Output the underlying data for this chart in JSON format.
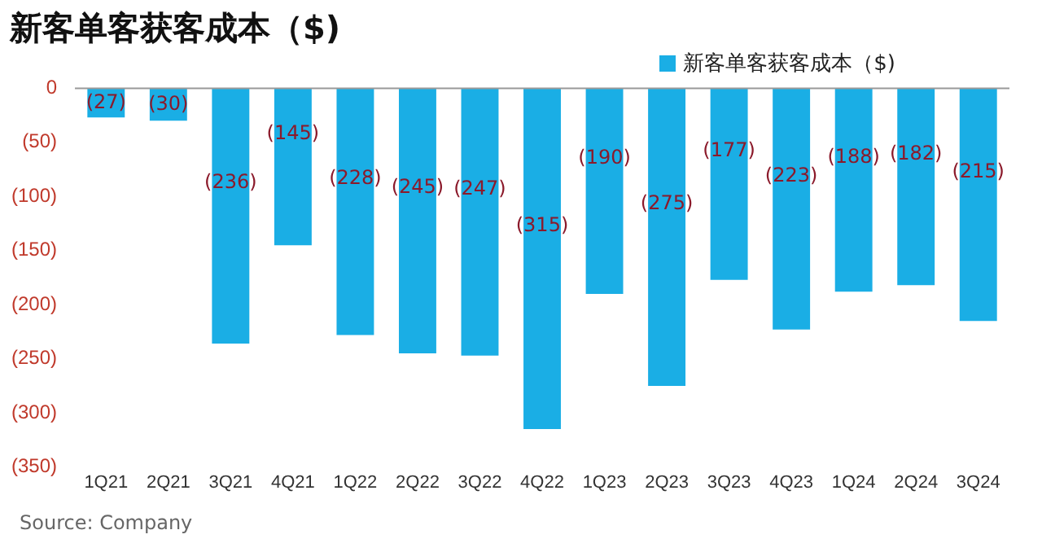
{
  "chart_data": {
    "type": "bar",
    "title": "新客单客获客成本（$)",
    "categories": [
      "1Q21",
      "2Q21",
      "3Q21",
      "4Q21",
      "1Q22",
      "2Q22",
      "3Q22",
      "4Q22",
      "1Q23",
      "2Q23",
      "3Q23",
      "4Q23",
      "1Q24",
      "2Q24",
      "3Q24"
    ],
    "series": [
      {
        "name": "新客单客获客成本（$)",
        "color": "#1aaee5",
        "values": [
          -27,
          -30,
          -236,
          -145,
          -228,
          -245,
          -247,
          -315,
          -190,
          -275,
          -177,
          -223,
          -188,
          -182,
          -215
        ],
        "value_labels": [
          "(27)",
          "(30)",
          "(236)",
          "(145)",
          "(228)",
          "(245)",
          "(247)",
          "(315)",
          "(190)",
          "(275)",
          "(177)",
          "(223)",
          "(188)",
          "(182)",
          "(215)"
        ]
      }
    ],
    "ylim": [
      -350,
      0
    ],
    "yticks": [
      0,
      {
        "value": -50,
        "label": "(50)"
      },
      {
        "value": -100,
        "label": "(100)"
      },
      {
        "value": -150,
        "label": "(150)"
      },
      {
        "value": -200,
        "label": "(200)"
      },
      {
        "value": -250,
        "label": "(250)"
      },
      {
        "value": -300,
        "label": "(300)"
      },
      {
        "value": -350,
        "label": "(350)"
      }
    ],
    "grid": false,
    "legend": "top right",
    "annotations": [
      "Source: Company"
    ]
  }
}
